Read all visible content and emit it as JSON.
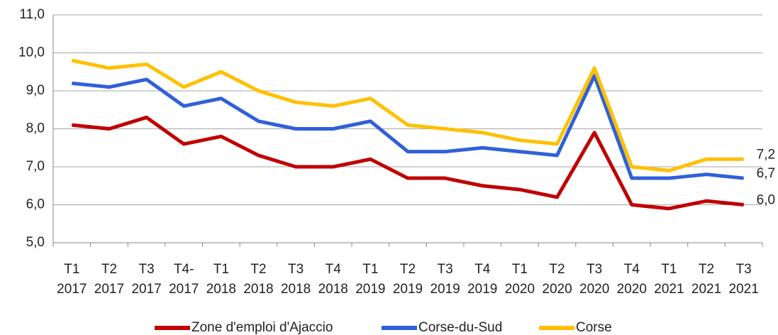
{
  "chart_data": {
    "type": "line",
    "categories": [
      "T1 2017",
      "T2 2017",
      "T3 2017",
      "T4- 2017",
      "T1 2018",
      "T2 2018",
      "T3 2018",
      "T4 2018",
      "T1 2019",
      "T2 2019",
      "T3 2019",
      "T4 2019",
      "T1 2020",
      "T2 2020",
      "T3 2020",
      "T4 2020",
      "T1 2021",
      "T2 2021",
      "T3 2021"
    ],
    "series": [
      {
        "name": "Zone d'emploi d'Ajaccio",
        "color": "#c00000",
        "values": [
          8.1,
          8.0,
          8.3,
          7.6,
          7.8,
          7.3,
          7.0,
          7.0,
          7.2,
          6.7,
          6.7,
          6.5,
          6.4,
          6.2,
          7.9,
          6.0,
          5.9,
          6.1,
          6.0
        ],
        "value_labels": [
          null,
          null,
          null,
          null,
          null,
          null,
          null,
          null,
          null,
          null,
          null,
          null,
          null,
          null,
          null,
          null,
          null,
          null,
          "6,0"
        ]
      },
      {
        "name": "Corse-du-Sud",
        "color": "#3060d8",
        "values": [
          9.2,
          9.1,
          9.3,
          8.6,
          8.8,
          8.2,
          8.0,
          8.0,
          8.2,
          7.4,
          7.4,
          7.5,
          7.4,
          7.3,
          9.4,
          6.7,
          6.7,
          6.8,
          6.7
        ],
        "value_labels": [
          null,
          null,
          null,
          null,
          null,
          null,
          null,
          null,
          null,
          null,
          null,
          null,
          null,
          null,
          null,
          null,
          null,
          null,
          "6,7"
        ]
      },
      {
        "name": "Corse",
        "color": "#ffc000",
        "values": [
          9.8,
          9.6,
          9.7,
          9.1,
          9.5,
          9.0,
          8.7,
          8.6,
          8.8,
          8.1,
          8.0,
          7.9,
          7.7,
          7.6,
          9.6,
          7.0,
          6.9,
          7.2,
          7.2
        ],
        "value_labels": [
          null,
          null,
          null,
          null,
          null,
          null,
          null,
          null,
          null,
          null,
          null,
          null,
          null,
          null,
          null,
          null,
          null,
          null,
          "7,2"
        ]
      }
    ],
    "ylim": [
      5,
      11
    ],
    "yticks": [
      {
        "value": 5,
        "label": "5,0"
      },
      {
        "value": 6,
        "label": "6,0"
      },
      {
        "value": 7,
        "label": "7,0"
      },
      {
        "value": 8,
        "label": "8,0"
      },
      {
        "value": 9,
        "label": "9,0"
      },
      {
        "value": 10,
        "label": "10,0"
      },
      {
        "value": 11,
        "label": "11,0"
      }
    ],
    "grid": true
  }
}
